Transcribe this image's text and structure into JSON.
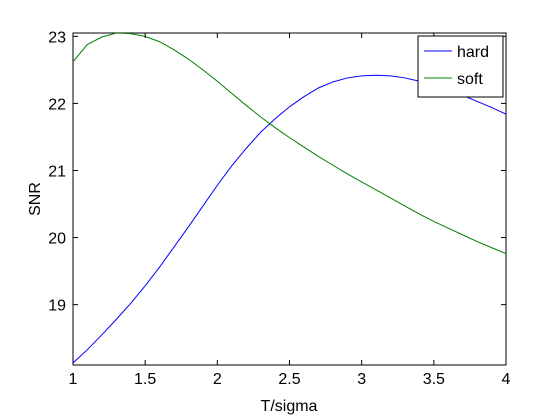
{
  "chart_data": {
    "type": "line",
    "title": "",
    "xlabel": "T/sigma",
    "ylabel": "SNR",
    "xlim": [
      1,
      4
    ],
    "ylim": [
      18.1,
      23.05
    ],
    "xticks": [
      1,
      1.5,
      2,
      2.5,
      3,
      3.5,
      4
    ],
    "xtick_labels": [
      "1",
      "1.5",
      "2",
      "2.5",
      "3",
      "3.5",
      "4"
    ],
    "yticks": [
      19,
      20,
      21,
      22,
      23
    ],
    "ytick_labels": [
      "19",
      "20",
      "21",
      "22",
      "23"
    ],
    "grid": false,
    "legend_position": "top-right",
    "series": [
      {
        "name": "hard",
        "color": "#0000ff",
        "x": [
          1.0,
          1.1,
          1.2,
          1.3,
          1.4,
          1.5,
          1.6,
          1.7,
          1.8,
          1.9,
          2.0,
          2.1,
          2.2,
          2.3,
          2.4,
          2.5,
          2.6,
          2.7,
          2.8,
          2.9,
          3.0,
          3.1,
          3.2,
          3.3,
          3.4,
          3.5,
          3.6,
          3.7,
          3.8,
          3.9,
          4.0
        ],
        "values": [
          18.13,
          18.33,
          18.55,
          18.78,
          19.02,
          19.28,
          19.56,
          19.86,
          20.16,
          20.47,
          20.78,
          21.07,
          21.33,
          21.57,
          21.77,
          21.95,
          22.1,
          22.23,
          22.32,
          22.38,
          22.41,
          22.42,
          22.41,
          22.38,
          22.33,
          22.27,
          22.2,
          22.12,
          22.03,
          21.94,
          21.84
        ]
      },
      {
        "name": "soft",
        "color": "#008000",
        "x": [
          1.0,
          1.1,
          1.2,
          1.3,
          1.4,
          1.5,
          1.6,
          1.7,
          1.8,
          1.9,
          2.0,
          2.1,
          2.2,
          2.3,
          2.4,
          2.5,
          2.6,
          2.7,
          2.8,
          2.9,
          3.0,
          3.1,
          3.2,
          3.3,
          3.4,
          3.5,
          3.6,
          3.7,
          3.8,
          3.9,
          4.0
        ],
        "values": [
          22.62,
          22.88,
          22.99,
          23.05,
          23.04,
          23.0,
          22.92,
          22.8,
          22.66,
          22.5,
          22.33,
          22.15,
          21.97,
          21.8,
          21.64,
          21.49,
          21.35,
          21.21,
          21.08,
          20.95,
          20.83,
          20.71,
          20.59,
          20.47,
          20.35,
          20.24,
          20.14,
          20.04,
          19.94,
          19.85,
          19.76
        ]
      }
    ]
  }
}
